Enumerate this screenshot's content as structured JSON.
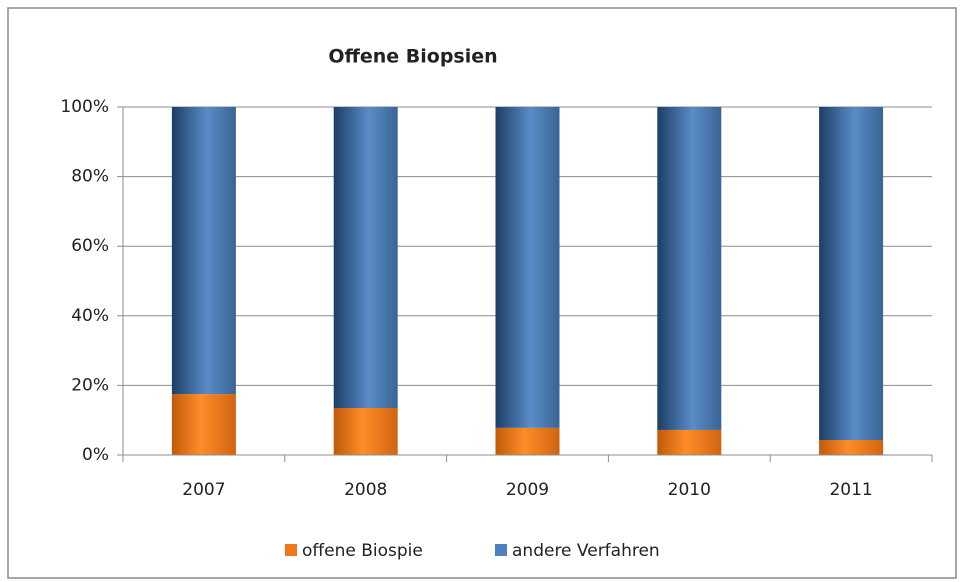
{
  "chart_data": {
    "type": "stacked_bar",
    "title": "Offene Biopsien",
    "categories": [
      "2007",
      "2008",
      "2009",
      "2010",
      "2011"
    ],
    "series": [
      {
        "name": "offene Biospie",
        "color": "#f07818",
        "values": [
          17.5,
          13.5,
          7.8,
          7.2,
          4.3
        ]
      },
      {
        "name": "andere Verfahren",
        "color": "#4f81bd",
        "values": [
          82.5,
          86.5,
          92.2,
          92.8,
          95.7
        ]
      }
    ],
    "ylim": [
      0,
      100
    ],
    "yticks": [
      {
        "value": 0,
        "label": "0%"
      },
      {
        "value": 20,
        "label": "20%"
      },
      {
        "value": 40,
        "label": "40%"
      },
      {
        "value": 60,
        "label": "60%"
      },
      {
        "value": 80,
        "label": "80%"
      },
      {
        "value": 100,
        "label": "100%"
      }
    ],
    "grid": true,
    "legend": "bottom"
  }
}
